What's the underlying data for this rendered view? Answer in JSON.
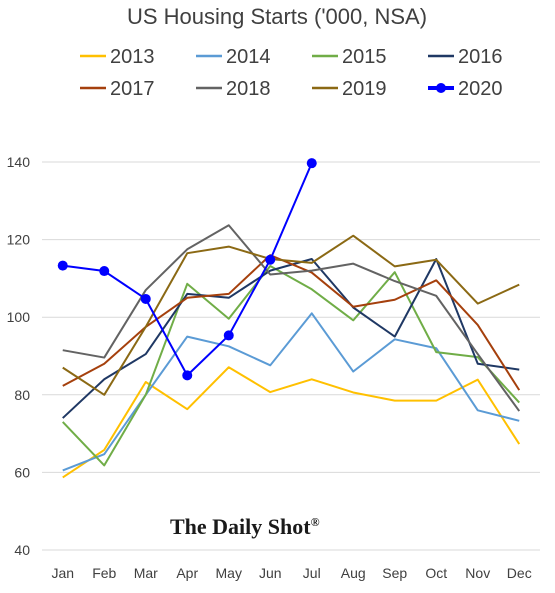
{
  "chart_data": {
    "type": "line",
    "title": "US Housing Starts ('000, NSA)",
    "xlabel": "",
    "ylabel": "",
    "categories": [
      "Jan",
      "Feb",
      "Mar",
      "Apr",
      "May",
      "Jun",
      "Jul",
      "Aug",
      "Sep",
      "Oct",
      "Nov",
      "Dec"
    ],
    "ylim": [
      40,
      140
    ],
    "yticks": [
      40,
      60,
      80,
      100,
      120,
      140
    ],
    "grid": true,
    "legend_position": "top",
    "series": [
      {
        "name": "2013",
        "color": "#ffc000",
        "markers": false,
        "values": [
          58.7,
          65.8,
          83.3,
          76.3,
          87.1,
          80.7,
          84.0,
          80.6,
          78.5,
          78.5,
          83.9,
          67.3
        ]
      },
      {
        "name": "2014",
        "color": "#5b9bd5",
        "markers": false,
        "values": [
          60.5,
          64.7,
          80.0,
          95.0,
          92.5,
          87.6,
          101.0,
          86.0,
          94.3,
          92.0,
          76.0,
          73.3
        ]
      },
      {
        "name": "2015",
        "color": "#70ad47",
        "markers": false,
        "values": [
          73.0,
          61.8,
          80.0,
          108.6,
          99.6,
          113.2,
          107.2,
          99.2,
          111.6,
          91.0,
          89.7,
          78.0
        ]
      },
      {
        "name": "2016",
        "color": "#1f3864",
        "markers": false,
        "values": [
          74.0,
          84.0,
          90.5,
          106.0,
          105.0,
          112.0,
          115.0,
          102.5,
          95.0,
          115.0,
          88.0,
          86.5
        ]
      },
      {
        "name": "2017",
        "color": "#a5400d",
        "markers": false,
        "values": [
          82.3,
          88.0,
          97.5,
          105.0,
          106.0,
          116.0,
          111.5,
          102.7,
          104.5,
          109.5,
          98.0,
          81.2
        ]
      },
      {
        "name": "2018",
        "color": "#636363",
        "markers": false,
        "values": [
          91.5,
          89.6,
          107.0,
          117.5,
          123.7,
          111.0,
          112.0,
          113.8,
          109.3,
          105.5,
          90.5,
          75.8
        ]
      },
      {
        "name": "2019",
        "color": "#8b6914",
        "markers": false,
        "values": [
          87.0,
          80.0,
          97.5,
          116.5,
          118.2,
          115.0,
          114.0,
          121.0,
          113.1,
          114.8,
          103.5,
          108.4
        ]
      },
      {
        "name": "2020",
        "color": "#0000ff",
        "markers": true,
        "values": [
          113.3,
          111.9,
          104.7,
          85.0,
          95.3,
          114.8,
          139.7,
          null,
          null,
          null,
          null,
          null
        ]
      }
    ]
  },
  "watermark": {
    "text": "The Daily Shot",
    "mark": "®"
  }
}
